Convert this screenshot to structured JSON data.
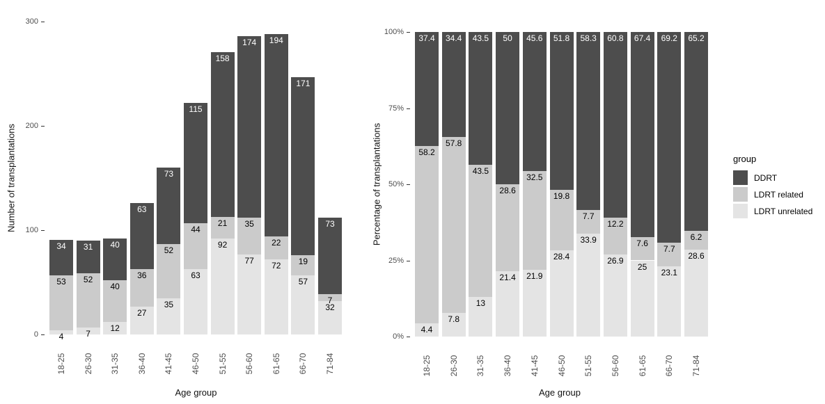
{
  "legend": {
    "title": "group",
    "items": [
      {
        "label": "DDRT",
        "color": "#4d4d4d"
      },
      {
        "label": "LDRT related",
        "color": "#cbcbcb"
      },
      {
        "label": "LDRT unrelated",
        "color": "#e4e4e4"
      }
    ]
  },
  "chart_data": [
    {
      "type": "bar",
      "stacked": true,
      "title": "",
      "xlabel": "Age group",
      "ylabel": "Number of transplantations",
      "categories": [
        "18-25",
        "26-30",
        "31-35",
        "36-40",
        "41-45",
        "46-50",
        "51-55",
        "56-60",
        "61-65",
        "66-70",
        "71-84"
      ],
      "series": [
        {
          "name": "DDRT",
          "color": "#4d4d4d",
          "label_color": "#ffffff",
          "values": [
            34,
            31,
            40,
            63,
            73,
            115,
            158,
            174,
            194,
            171,
            73
          ]
        },
        {
          "name": "LDRT related",
          "color": "#cbcbcb",
          "label_color": "#000000",
          "values": [
            53,
            52,
            40,
            36,
            52,
            44,
            21,
            35,
            22,
            19,
            7
          ]
        },
        {
          "name": "LDRT unrelated",
          "color": "#e4e4e4",
          "label_color": "#000000",
          "values": [
            4,
            7,
            12,
            27,
            35,
            63,
            92,
            77,
            72,
            57,
            32
          ]
        }
      ],
      "ylim": [
        0,
        300
      ],
      "yticks": [
        {
          "value": 0,
          "label": "0"
        },
        {
          "value": 100,
          "label": "100"
        },
        {
          "value": 200,
          "label": "200"
        },
        {
          "value": 300,
          "label": "300"
        }
      ],
      "grid": false,
      "legend_position": "right"
    },
    {
      "type": "bar",
      "stacked": true,
      "title": "",
      "xlabel": "Age group",
      "ylabel": "Percentage of transplantations",
      "categories": [
        "18-25",
        "26-30",
        "31-35",
        "36-40",
        "41-45",
        "46-50",
        "51-55",
        "56-60",
        "61-65",
        "66-70",
        "71-84"
      ],
      "series": [
        {
          "name": "DDRT",
          "color": "#4d4d4d",
          "label_color": "#ffffff",
          "values": [
            37.4,
            34.4,
            43.5,
            50,
            45.6,
            51.8,
            58.3,
            60.8,
            67.4,
            69.2,
            65.2
          ]
        },
        {
          "name": "LDRT related",
          "color": "#cbcbcb",
          "label_color": "#000000",
          "values": [
            58.2,
            57.8,
            43.5,
            28.6,
            32.5,
            19.8,
            7.7,
            12.2,
            7.6,
            7.7,
            6.2
          ]
        },
        {
          "name": "LDRT unrelated",
          "color": "#e4e4e4",
          "label_color": "#000000",
          "values": [
            4.4,
            7.8,
            13,
            21.4,
            21.9,
            28.4,
            33.9,
            26.9,
            25,
            23.1,
            28.6
          ]
        }
      ],
      "ylim": [
        0,
        100
      ],
      "yticks": [
        {
          "value": 0,
          "label": "0%"
        },
        {
          "value": 25,
          "label": "25%"
        },
        {
          "value": 50,
          "label": "50%"
        },
        {
          "value": 75,
          "label": "75%"
        },
        {
          "value": 100,
          "label": "100%"
        }
      ],
      "grid": false,
      "legend_position": "right"
    }
  ]
}
